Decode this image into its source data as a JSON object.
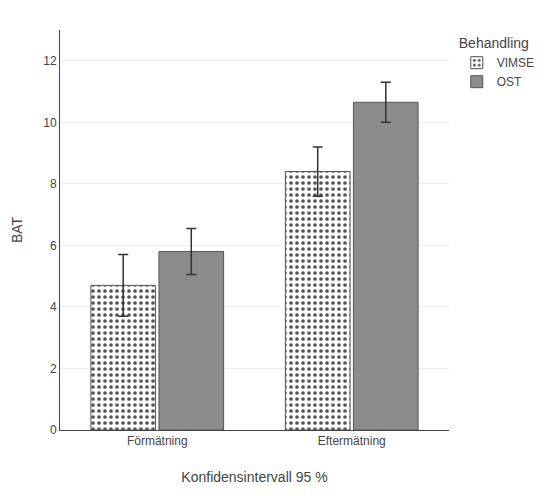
{
  "chart_data": {
    "type": "bar",
    "categories": [
      "Förmätning",
      "Eftermätning"
    ],
    "series": [
      {
        "name": "VIMSE",
        "color": "#ffffff",
        "values": [
          4.7,
          8.4
        ],
        "errors": [
          1.0,
          0.8
        ]
      },
      {
        "name": "OST",
        "color": "#8c8c8c",
        "values": [
          5.8,
          10.65
        ],
        "errors": [
          0.75,
          0.65
        ]
      }
    ],
    "xlabel": "Konfidensintervall 95 %",
    "ylabel": "BAT",
    "legend_title": "Behandling",
    "legend": "right",
    "ylim": [
      0,
      13
    ],
    "yticks": [
      0,
      2,
      4,
      6,
      8,
      10,
      12
    ],
    "grid": true
  }
}
